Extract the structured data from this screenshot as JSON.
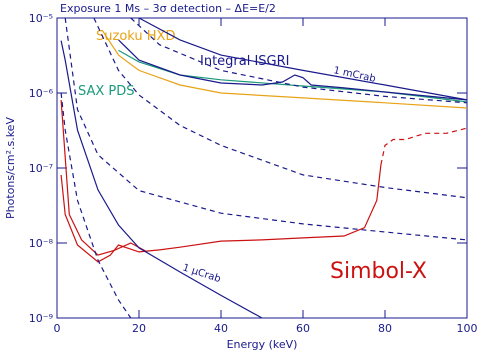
{
  "chart_data": {
    "type": "line",
    "title": "Exposure 1 Ms – 3σ detection – ΔE=E/2",
    "x_label": "Energy (keV)",
    "y_label": "Photons/cm².s.keV",
    "y_log": true,
    "xlim": [
      0,
      100
    ],
    "xticks": [
      0,
      20,
      40,
      60,
      80,
      100
    ],
    "ylim": [
      1e-09,
      1e-05
    ],
    "yticks": [
      {
        "value": 1e-09,
        "label": "10⁻⁹"
      },
      {
        "value": 1e-08,
        "label": "10⁻⁸"
      },
      {
        "value": 1e-07,
        "label": "10⁻⁷"
      },
      {
        "value": 1e-06,
        "label": "10⁻⁶"
      },
      {
        "value": 1e-05,
        "label": "10⁻⁵"
      }
    ],
    "series": [
      {
        "name": "Simbol-X",
        "color": "#cc1111",
        "dash": false,
        "x": [
          1,
          2,
          5,
          10,
          13,
          15,
          20,
          25,
          30,
          40,
          50,
          60,
          70,
          75,
          78,
          79
        ],
        "values": [
          8.1e-08,
          2.4e-08,
          9.4e-09,
          5.6e-09,
          6.9e-09,
          9.4e-09,
          7.6e-09,
          8.1e-09,
          8.8e-09,
          1.06e-08,
          1.1e-08,
          1.17e-08,
          1.24e-08,
          1.6e-08,
          3.7e-08,
          1.1e-07
        ]
      },
      {
        "color": "#cc1111",
        "dash": true,
        "x": [
          79,
          80,
          82,
          85,
          88,
          90,
          95,
          100
        ],
        "values": [
          1.1e-07,
          2e-07,
          2.4e-07,
          2.4e-07,
          2.7e-07,
          2.9e-07,
          2.9e-07,
          3.4e-07
        ]
      },
      {
        "color": "#cc1111",
        "dash": false,
        "x": [
          1,
          3,
          6,
          10,
          14,
          18,
          22
        ],
        "values": [
          8.1e-07,
          2.4e-08,
          1.1e-08,
          6.9e-09,
          8e-09,
          1e-08,
          7.6e-09
        ]
      },
      {
        "name": "Suzoku HXD",
        "color": "#e8a317",
        "dash": false,
        "x": [
          11,
          15,
          20,
          30,
          40,
          60,
          80,
          100
        ],
        "values": [
          6.9e-06,
          3.2e-06,
          2e-06,
          1.28e-06,
          1e-06,
          8.6e-07,
          7.4e-07,
          6.3e-07
        ]
      },
      {
        "name": "SAX PDS",
        "color": "#1a9a7a",
        "dash": false,
        "x": [
          15,
          20,
          30,
          40,
          60,
          80,
          100
        ],
        "values": [
          3.7e-06,
          2.6e-06,
          1.74e-06,
          1.5e-06,
          1.24e-06,
          1.03e-06,
          7.6e-07
        ]
      },
      {
        "name": "Integral ISGRI",
        "color": "#1a1a8c",
        "dash": false,
        "x": [
          15,
          20,
          30,
          40,
          50,
          55,
          58,
          60,
          62,
          70,
          80,
          100
        ],
        "values": [
          5.1e-06,
          2.75e-06,
          1.74e-06,
          1.36e-06,
          1.28e-06,
          1.4e-06,
          1.74e-06,
          1.6e-06,
          1.28e-06,
          1.17e-06,
          1.03e-06,
          8.1e-07
        ]
      },
      {
        "name": "1 mCrab",
        "color": "#1a1a8c",
        "dash": false,
        "x": [
          20,
          30,
          40,
          60,
          80,
          100
        ],
        "values": [
          1e-05,
          5.1e-06,
          3.2e-06,
          2e-06,
          1.28e-06,
          8.1e-07
        ]
      },
      {
        "name": "1 µCrab",
        "color": "#1a1a8c",
        "dash": false,
        "x": [
          1,
          2,
          5,
          10,
          15,
          20,
          30,
          40,
          50
        ],
        "values": [
          5e-06,
          2.75e-06,
          3.2e-07,
          5.1e-08,
          1.74e-08,
          8.6e-09,
          4.1e-09,
          2e-09,
          1e-09
        ]
      },
      {
        "color": "#1a1a8c",
        "dash": true,
        "x": [
          1,
          2,
          5,
          10,
          15,
          18
        ],
        "values": [
          1e-06,
          3.2e-07,
          3.7e-08,
          5.9e-09,
          1.74e-09,
          1e-09
        ]
      },
      {
        "color": "#1a1a8c",
        "dash": true,
        "x": [
          9,
          15,
          20,
          30,
          40,
          60,
          80,
          100
        ],
        "values": [
          1e-05,
          2e-06,
          9.4e-07,
          3.7e-07,
          2e-07,
          8.1e-08,
          5.5e-08,
          4e-08
        ]
      },
      {
        "color": "#1a1a8c",
        "dash": true,
        "x": [
          18,
          25,
          40,
          60,
          80,
          100
        ],
        "values": [
          1e-05,
          4.4e-06,
          2e-06,
          1.2e-06,
          9e-07,
          7.4e-07
        ]
      },
      {
        "color": "#1a1a8c",
        "dash": true,
        "x": [
          2,
          5,
          10,
          20,
          40,
          60,
          80,
          100
        ],
        "values": [
          1e-05,
          6e-07,
          1.5e-07,
          5e-08,
          2.5e-08,
          1.8e-08,
          1.4e-08,
          1.1e-08
        ]
      }
    ]
  }
}
